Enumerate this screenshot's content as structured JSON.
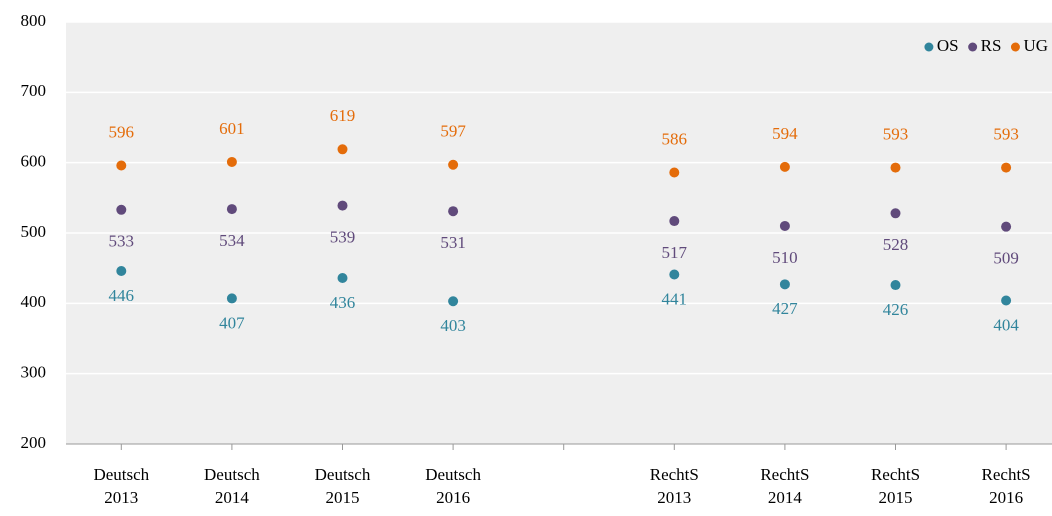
{
  "chart_data": {
    "type": "dot",
    "categories": [
      "Deutsch 2013",
      "Deutsch 2014",
      "Deutsch 2015",
      "Deutsch 2016",
      null,
      "RechtS 2013",
      "RechtS 2014",
      "RechtS 2015",
      "RechtS 2016"
    ],
    "series": [
      {
        "name": "OS",
        "color": "#31859c",
        "values": [
          446,
          407,
          436,
          403,
          null,
          441,
          427,
          426,
          404
        ]
      },
      {
        "name": "RS",
        "color": "#604a7b",
        "values": [
          533,
          534,
          539,
          531,
          null,
          517,
          510,
          528,
          509
        ]
      },
      {
        "name": "UG",
        "color": "#e46c0a",
        "values": [
          596,
          601,
          619,
          597,
          null,
          586,
          594,
          593,
          593
        ]
      }
    ],
    "ylim": [
      200,
      800
    ],
    "yticks": [
      200,
      300,
      400,
      500,
      600,
      700,
      800
    ],
    "grid": true,
    "legend": "top-right"
  }
}
